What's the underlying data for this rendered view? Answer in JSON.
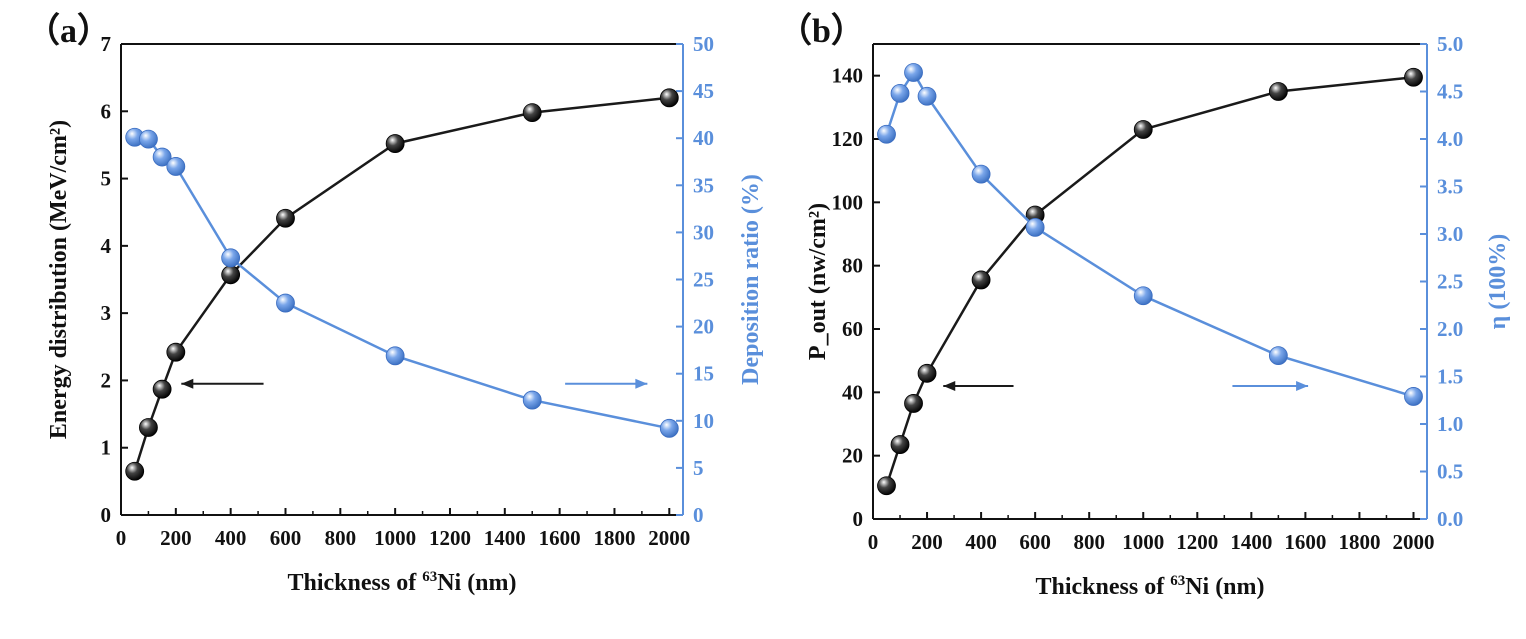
{
  "colors": {
    "left": "#1a1a1a",
    "right": "#5a8fdb"
  },
  "chart_data": [
    {
      "type": "line",
      "panel_label": "（a）",
      "xlabel_main": "Thickness of ",
      "xlabel_sup": "63",
      "xlabel_tail": "Ni (nm)",
      "ylabel": "Energy  distribution (MeV/cm²)",
      "y2label": "Deposition ratio (%)",
      "xlim": [
        0,
        2050
      ],
      "ylim": [
        0,
        7
      ],
      "y2lim": [
        0,
        50
      ],
      "xticks": [
        "0",
        "200",
        "400",
        "600",
        "800",
        "1000",
        "1200",
        "1400",
        "1600",
        "1800",
        "2000"
      ],
      "yticks": [
        "0",
        "1",
        "2",
        "3",
        "4",
        "5",
        "6",
        "7"
      ],
      "y2ticks": [
        "0",
        "5",
        "10",
        "15",
        "20",
        "25",
        "30",
        "35",
        "40",
        "45",
        "50"
      ],
      "series": [
        {
          "axis": "left",
          "x": [
            50,
            100,
            150,
            200,
            400,
            600,
            1000,
            1500,
            2000
          ],
          "y": [
            0.65,
            1.3,
            1.87,
            2.42,
            3.57,
            4.41,
            5.52,
            5.98,
            6.2
          ]
        },
        {
          "axis": "right",
          "x": [
            50,
            100,
            150,
            200,
            400,
            600,
            1000,
            1500,
            2000
          ],
          "y": [
            40.1,
            39.9,
            38.0,
            37.0,
            27.3,
            22.5,
            16.9,
            12.2,
            9.2
          ]
        }
      ],
      "annotations": [
        {
          "direction": "left",
          "target": "left-axis",
          "x_from": 520,
          "x_to": 220,
          "y": 1.95
        },
        {
          "direction": "right",
          "target": "right-axis",
          "x_from": 1620,
          "x_to": 1920,
          "y": 1.95
        }
      ]
    },
    {
      "type": "line",
      "panel_label": "（b）",
      "xlabel_main": "Thickness of ",
      "xlabel_sup": "63",
      "xlabel_tail": "Ni (nm)",
      "ylabel": "P_out (nw/cm²)",
      "y2label": "η (100%)",
      "xlim": [
        0,
        2050
      ],
      "ylim": [
        0,
        150
      ],
      "y2lim": [
        0,
        5.0
      ],
      "xticks": [
        "0",
        "200",
        "400",
        "600",
        "800",
        "1000",
        "1200",
        "1400",
        "1600",
        "1800",
        "2000"
      ],
      "yticks": [
        "0",
        "20",
        "40",
        "60",
        "80",
        "100",
        "120",
        "140"
      ],
      "y2ticks": [
        "0.0",
        "0.5",
        "1.0",
        "1.5",
        "2.0",
        "2.5",
        "3.0",
        "3.5",
        "4.0",
        "4.5",
        "5.0"
      ],
      "series": [
        {
          "axis": "left",
          "x": [
            50,
            100,
            150,
            200,
            400,
            600,
            1000,
            1500,
            2000
          ],
          "y": [
            10.5,
            23.5,
            36.5,
            46,
            75.5,
            96,
            123,
            135,
            139.5
          ]
        },
        {
          "axis": "right",
          "x": [
            50,
            100,
            150,
            200,
            400,
            600,
            1000,
            1500,
            2000
          ],
          "y": [
            4.05,
            4.48,
            4.7,
            4.45,
            3.63,
            3.07,
            2.35,
            1.72,
            1.29
          ]
        }
      ],
      "annotations": [
        {
          "direction": "left",
          "target": "left-axis",
          "x_from": 520,
          "x_to": 260,
          "y": 42
        },
        {
          "direction": "right",
          "target": "right-axis",
          "x_from": 1330,
          "x_to": 1610,
          "y": 42
        }
      ]
    }
  ]
}
